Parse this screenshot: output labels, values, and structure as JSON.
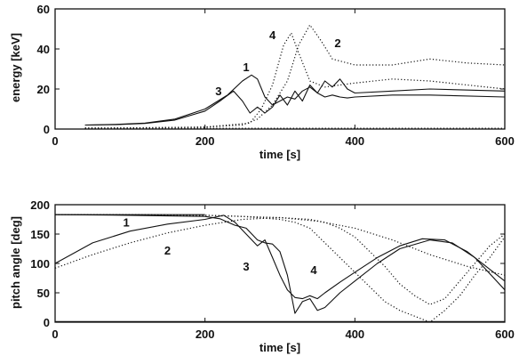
{
  "chart_data": [
    {
      "type": "line",
      "xlabel": "time [s]",
      "ylabel": "energy [keV]",
      "xlim": [
        0,
        600
      ],
      "ylim": [
        0,
        60
      ],
      "xticks": [
        0,
        200,
        400,
        600
      ],
      "yticks": [
        0,
        20,
        40,
        60
      ],
      "grid": false,
      "series": [
        {
          "name": "1",
          "style": "solid",
          "x": [
            40,
            80,
            120,
            160,
            200,
            230,
            250,
            262,
            270,
            280,
            290,
            300,
            310,
            320,
            330,
            340,
            350,
            360,
            370,
            380,
            390,
            400,
            450,
            500,
            600
          ],
          "y": [
            2,
            2.3,
            3,
            5,
            10,
            17,
            24,
            27,
            25,
            16,
            12,
            14,
            16,
            15,
            19,
            21,
            18,
            16,
            17,
            16,
            15.5,
            16,
            17,
            17,
            16
          ]
        },
        {
          "name": "2",
          "style": "dotted",
          "x": [
            40,
            100,
            200,
            250,
            270,
            290,
            310,
            325,
            340,
            355,
            370,
            400,
            450,
            500,
            550,
            600
          ],
          "y": [
            0.5,
            0.6,
            1,
            2,
            5,
            12,
            24,
            42,
            52,
            44,
            35,
            32,
            32,
            35,
            33,
            32
          ]
        },
        {
          "name": "3",
          "style": "solid",
          "x": [
            40,
            80,
            120,
            160,
            200,
            220,
            238,
            250,
            260,
            270,
            280,
            290,
            300,
            310,
            320,
            330,
            340,
            350,
            360,
            370,
            380,
            390,
            400,
            450,
            500,
            600
          ],
          "y": [
            2,
            2.2,
            2.8,
            4.5,
            9,
            14,
            19,
            14,
            8,
            11,
            8,
            11,
            17,
            12,
            19,
            14,
            22,
            18,
            24,
            21,
            25,
            20,
            18,
            19,
            20,
            19
          ]
        },
        {
          "name": "4",
          "style": "dotted",
          "x": [
            40,
            100,
            200,
            260,
            275,
            290,
            305,
            315,
            325,
            340,
            360,
            380,
            400,
            450,
            500,
            550,
            600
          ],
          "y": [
            0.5,
            0.6,
            1,
            3,
            10,
            22,
            42,
            48,
            38,
            24,
            21,
            22,
            23,
            25,
            24,
            22,
            20
          ]
        },
        {
          "name": "",
          "style": "dotted",
          "x": [
            40,
            600
          ],
          "y": [
            0.4,
            0.4
          ]
        }
      ],
      "curve_labels": [
        {
          "text": "1",
          "x": 255,
          "y": 29
        },
        {
          "text": "2",
          "x": 377,
          "y": 41
        },
        {
          "text": "3",
          "x": 218,
          "y": 17
        },
        {
          "text": "4",
          "x": 290,
          "y": 45
        }
      ]
    },
    {
      "type": "line",
      "xlabel": "time [s]",
      "ylabel": "pitch angle [deg]",
      "xlim": [
        0,
        600
      ],
      "ylim": [
        0,
        200
      ],
      "xticks": [
        0,
        200,
        400,
        600
      ],
      "yticks": [
        0,
        50,
        100,
        150,
        200
      ],
      "grid": false,
      "series": [
        {
          "name": "",
          "style": "solid",
          "x": [
            0,
            200
          ],
          "y": [
            183,
            183
          ]
        },
        {
          "name": "1",
          "style": "solid",
          "x": [
            0,
            50,
            100,
            150,
            200,
            225,
            240,
            255,
            270,
            280,
            290,
            300,
            310,
            320,
            330,
            340,
            350,
            360,
            380,
            400,
            430,
            460,
            490,
            520,
            550,
            575,
            600
          ],
          "y": [
            100,
            135,
            155,
            167,
            175,
            182,
            170,
            150,
            130,
            140,
            110,
            80,
            55,
            42,
            40,
            45,
            40,
            50,
            68,
            85,
            110,
            130,
            142,
            140,
            120,
            95,
            70
          ]
        },
        {
          "name": "2",
          "style": "dotted",
          "x": [
            0,
            50,
            100,
            150,
            200,
            250,
            300,
            350,
            400,
            450,
            500,
            550,
            600
          ],
          "y": [
            92,
            115,
            135,
            152,
            165,
            175,
            178,
            172,
            160,
            140,
            115,
            95,
            80
          ]
        },
        {
          "name": "3",
          "style": "solid",
          "x": [
            0,
            100,
            200,
            220,
            240,
            255,
            270,
            280,
            290,
            300,
            310,
            320,
            330,
            340,
            350,
            360,
            380,
            400,
            430,
            460,
            500,
            530,
            560,
            600
          ],
          "y": [
            183,
            182,
            180,
            176,
            165,
            160,
            140,
            135,
            133,
            120,
            80,
            15,
            35,
            40,
            20,
            25,
            50,
            70,
            100,
            125,
            140,
            135,
            110,
            55
          ]
        },
        {
          "name": "4",
          "style": "dotted",
          "x": [
            0,
            100,
            200,
            250,
            300,
            320,
            340,
            360,
            380,
            400,
            420,
            440,
            460,
            480,
            500,
            520,
            540,
            560,
            580,
            600
          ],
          "y": [
            183,
            183,
            182,
            180,
            175,
            170,
            160,
            135,
            110,
            85,
            60,
            35,
            20,
            10,
            0,
            20,
            45,
            80,
            110,
            145
          ]
        },
        {
          "name": "",
          "style": "dotted",
          "x": [
            0,
            100,
            200,
            300,
            340,
            360,
            380,
            400,
            420,
            440,
            460,
            480,
            500,
            520,
            540,
            560,
            580,
            600
          ],
          "y": [
            183,
            183,
            182,
            178,
            175,
            170,
            160,
            145,
            120,
            95,
            65,
            45,
            30,
            40,
            70,
            100,
            130,
            150
          ]
        },
        {
          "name": "",
          "style": "solid",
          "x": [
            0,
            600
          ],
          "y": [
            1,
            1
          ]
        }
      ],
      "curve_labels": [
        {
          "text": "1",
          "x": 95,
          "y": 163
        },
        {
          "text": "2",
          "x": 150,
          "y": 115
        },
        {
          "text": "3",
          "x": 255,
          "y": 88
        },
        {
          "text": "4",
          "x": 345,
          "y": 82
        }
      ]
    }
  ]
}
